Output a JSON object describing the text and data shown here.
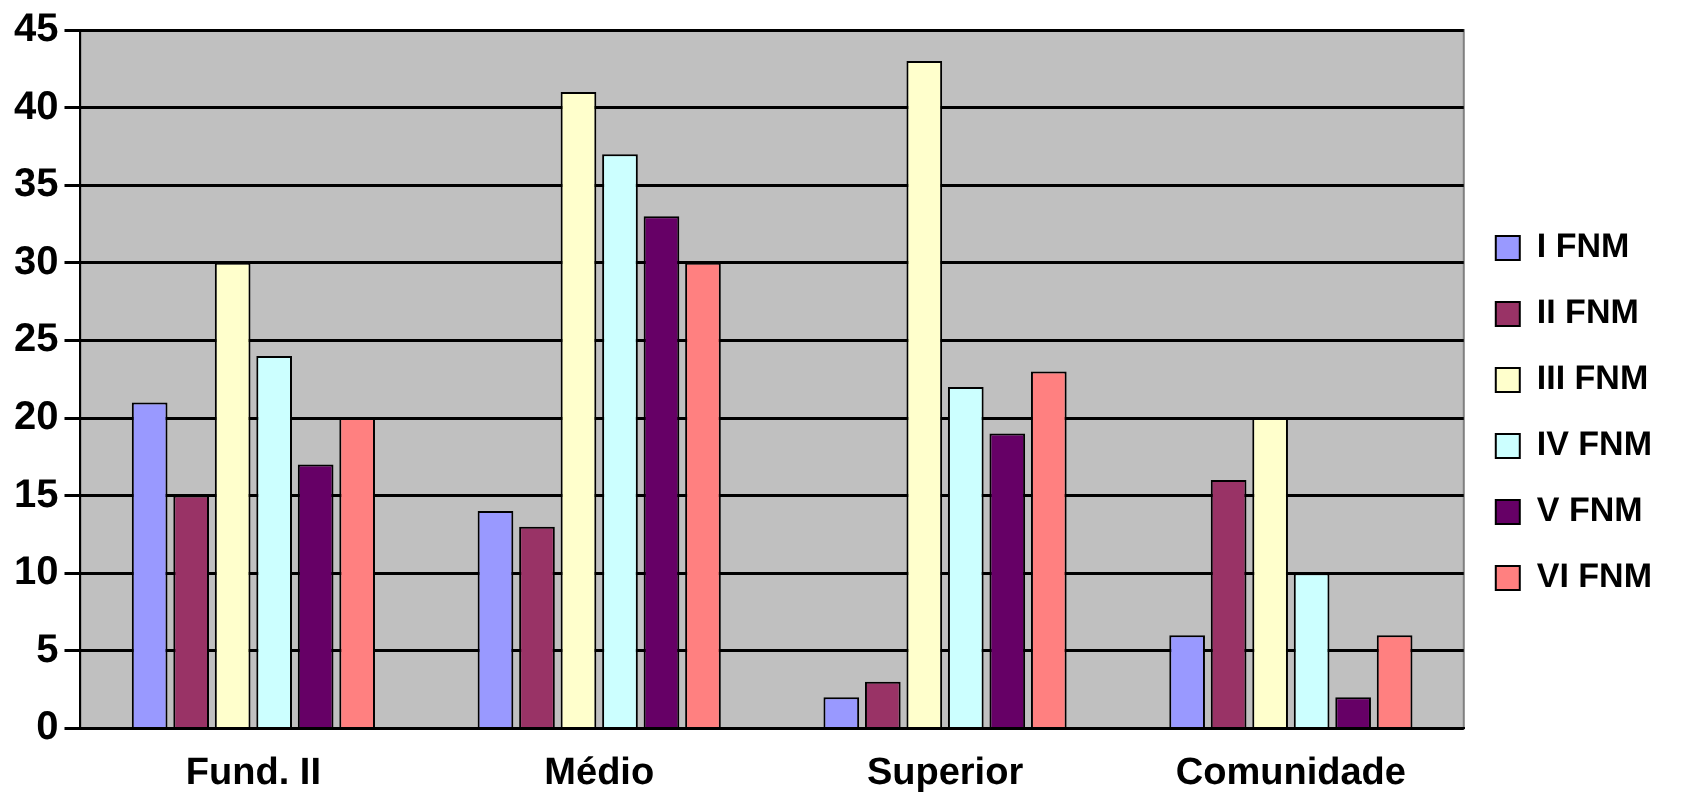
{
  "chart_data": {
    "type": "bar",
    "categories": [
      "Fund. II",
      "Médio",
      "Superior",
      "Comunidade"
    ],
    "series": [
      {
        "name": "I FNM",
        "color": "#9999ff",
        "values": [
          21,
          14,
          2,
          6
        ]
      },
      {
        "name": "II FNM",
        "color": "#993366",
        "values": [
          15,
          13,
          3,
          16
        ]
      },
      {
        "name": "III FNM",
        "color": "#ffffcc",
        "values": [
          30,
          41,
          43,
          20
        ]
      },
      {
        "name": "IV FNM",
        "color": "#ccffff",
        "values": [
          24,
          37,
          22,
          10
        ]
      },
      {
        "name": "V FNM",
        "color": "#660066",
        "values": [
          17,
          33,
          19,
          2
        ]
      },
      {
        "name": "VI FNM",
        "color": "#ff8080",
        "values": [
          20,
          30,
          23,
          6
        ]
      }
    ],
    "ylim": [
      0,
      45
    ],
    "yticks": [
      0,
      5,
      10,
      15,
      20,
      25,
      30,
      35,
      40,
      45
    ],
    "grid": "y",
    "legend": "right"
  }
}
